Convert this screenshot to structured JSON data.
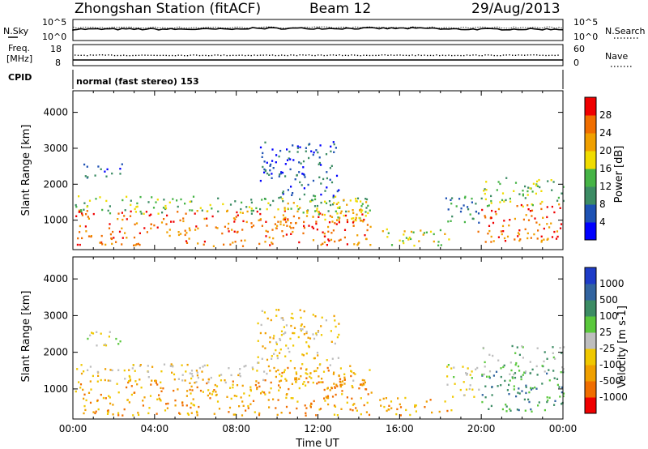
{
  "header": {
    "station": "Zhongshan Station (fitACF)",
    "beam": "Beam 12",
    "date": "29/Aug/2013"
  },
  "panels": {
    "nsky": {
      "label": "N.Sky",
      "ticks": [
        "10^5",
        "10^0"
      ],
      "right_label": "N.Search",
      "right_ticks": [
        "10^5",
        "10^0"
      ]
    },
    "freq": {
      "label_top": "Freq.",
      "label_unit": "[MHz]",
      "ticks": [
        "18",
        "8"
      ],
      "right_label": "Nave",
      "right_ticks": [
        "60",
        "0"
      ]
    },
    "cpid": {
      "label": "CPID",
      "text": "normal (fast stereo) 153"
    }
  },
  "chart_data": [
    {
      "type": "heatmap",
      "name": "power",
      "xlabel": "Time UT",
      "ylabel": "Slant Range [km]",
      "x_ticks": [
        "00:00",
        "04:00",
        "08:00",
        "12:00",
        "16:00",
        "20:00",
        "00:00"
      ],
      "y_ticks": [
        1000,
        2000,
        3000,
        4000
      ],
      "xlim_hours": [
        0,
        24
      ],
      "ylim_km": [
        180,
        4600
      ],
      "colorbar": {
        "label": "Power [dB]",
        "tick_labels": [
          "4",
          "8",
          "12",
          "16",
          "20",
          "24",
          "28"
        ],
        "colors": [
          "#0000ff",
          "#1e52b4",
          "#3c8c64",
          "#46b446",
          "#f0dc00",
          "#f0a000",
          "#f06e00",
          "#f00000"
        ]
      },
      "scatter_regions": [
        {
          "t0": 0.1,
          "t1": 14.6,
          "r0": 300,
          "r1": 1300,
          "level": 6
        },
        {
          "t0": 0.1,
          "t1": 14.6,
          "r0": 1200,
          "r1": 1700,
          "level": 3
        },
        {
          "t0": 10.0,
          "t1": 14.5,
          "r0": 1000,
          "r1": 1600,
          "level": 4
        },
        {
          "t0": 15.0,
          "t1": 18.5,
          "r0": 300,
          "r1": 800,
          "level": 4
        },
        {
          "t0": 18.2,
          "t1": 20.0,
          "r0": 800,
          "r1": 1700,
          "level": 2
        },
        {
          "t0": 19.8,
          "t1": 24.0,
          "r0": 400,
          "r1": 1500,
          "level": 6
        },
        {
          "t0": 20.0,
          "t1": 24.0,
          "r0": 1400,
          "r1": 2200,
          "level": 3
        },
        {
          "t0": 9.0,
          "t1": 13.0,
          "r0": 1700,
          "r1": 3200,
          "level": 1
        },
        {
          "t0": 0.5,
          "t1": 2.5,
          "r0": 2200,
          "r1": 2600,
          "level": 1
        }
      ]
    },
    {
      "type": "heatmap",
      "name": "velocity",
      "xlabel": "Time UT",
      "ylabel": "Slant Range [km]",
      "x_ticks": [
        "00:00",
        "04:00",
        "08:00",
        "12:00",
        "16:00",
        "20:00",
        "00:00"
      ],
      "y_ticks": [
        1000,
        2000,
        3000,
        4000
      ],
      "xlim_hours": [
        0,
        24
      ],
      "ylim_km": [
        180,
        4600
      ],
      "colorbar": {
        "label": "Velocity [m s-1]",
        "tick_labels": [
          "1000",
          "500",
          "100",
          "25",
          "-25",
          "-100",
          "-500",
          "-1000"
        ],
        "colors": [
          "#1e3cc8",
          "#3264a0",
          "#3c8c64",
          "#5ac83c",
          "#bebebe",
          "#f0c800",
          "#f0a000",
          "#f06e00",
          "#f00000"
        ]
      },
      "scatter_regions": [
        {
          "t0": 0.1,
          "t1": 14.6,
          "r0": 300,
          "r1": 1300,
          "level": 6
        },
        {
          "t0": 0.1,
          "t1": 14.6,
          "r0": 1200,
          "r1": 1700,
          "level": 5
        },
        {
          "t0": 10.0,
          "t1": 14.5,
          "r0": 1000,
          "r1": 1600,
          "level": 6
        },
        {
          "t0": 15.0,
          "t1": 18.5,
          "r0": 300,
          "r1": 800,
          "level": 6
        },
        {
          "t0": 18.2,
          "t1": 20.0,
          "r0": 800,
          "r1": 1700,
          "level": 4
        },
        {
          "t0": 19.8,
          "t1": 24.0,
          "r0": 400,
          "r1": 1500,
          "level": 2
        },
        {
          "t0": 20.0,
          "t1": 24.0,
          "r0": 1400,
          "r1": 2200,
          "level": 3
        },
        {
          "t0": 9.0,
          "t1": 13.0,
          "r0": 1700,
          "r1": 3200,
          "level": 5
        },
        {
          "t0": 0.5,
          "t1": 2.5,
          "r0": 2200,
          "r1": 2600,
          "level": 4
        }
      ]
    }
  ]
}
